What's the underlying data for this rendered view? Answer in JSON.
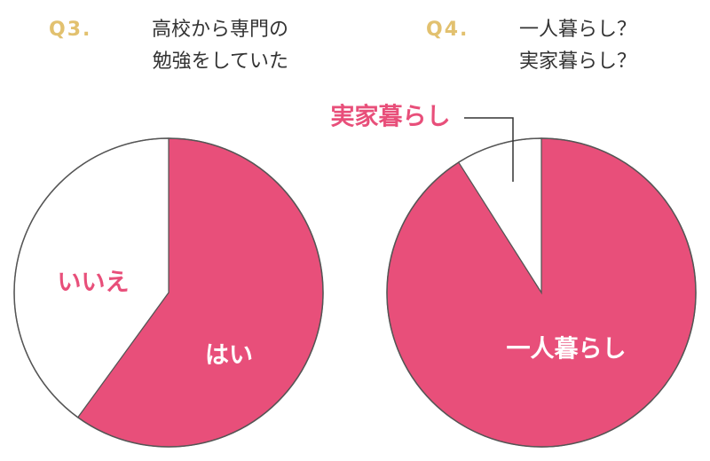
{
  "chart_data": [
    {
      "type": "pie",
      "number": "Q3.",
      "title": [
        "高校から専門の",
        "勉強をしていた"
      ],
      "categories": [
        "はい",
        "いいえ"
      ],
      "values": [
        60,
        40
      ],
      "colors": [
        "#e84f7a",
        "#ffffff"
      ]
    },
    {
      "type": "pie",
      "number": "Q4.",
      "title": [
        "一人暮らし？",
        "実家暮らし？"
      ],
      "categories": [
        "一人暮らし",
        "実家暮らし"
      ],
      "values": [
        91,
        9
      ],
      "colors": [
        "#e84f7a",
        "#ffffff"
      ]
    }
  ]
}
